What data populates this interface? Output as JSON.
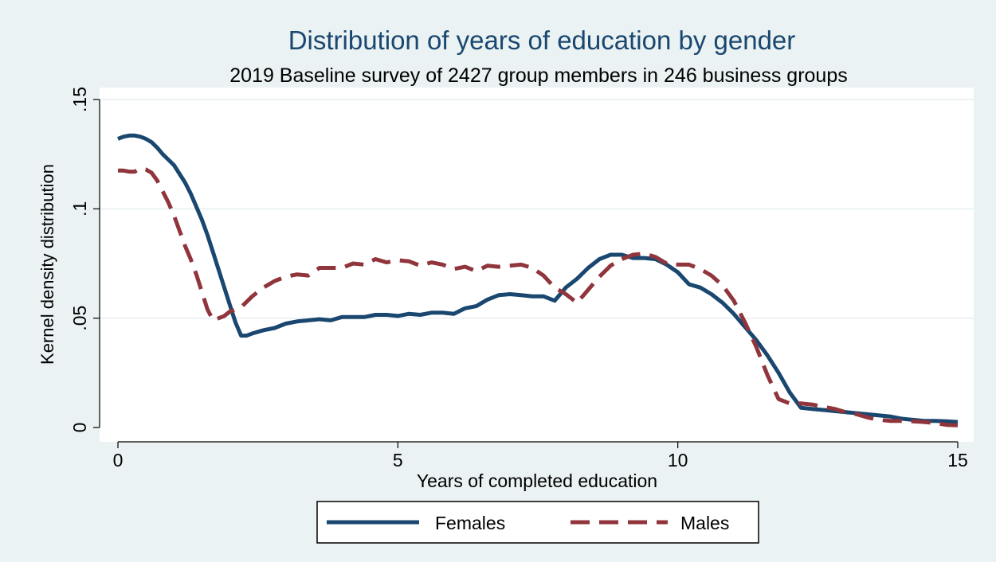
{
  "chart_data": {
    "type": "line",
    "title": "Distribution of years of education by gender",
    "subtitle": "2019 Baseline survey of 2427 group members in 246 business groups",
    "xlabel": "Years of completed education",
    "ylabel": "Kernel density distribution",
    "xlim": [
      0,
      15
    ],
    "ylim": [
      0,
      0.15
    ],
    "x_ticks": [
      0,
      5,
      10,
      15
    ],
    "x_tick_labels": [
      "0",
      "5",
      "10",
      "15"
    ],
    "y_ticks": [
      0,
      0.05,
      0.1,
      0.15
    ],
    "y_tick_labels": [
      "0",
      ".05",
      ".1",
      ".15"
    ],
    "grid": true,
    "legend_position": "bottom",
    "colors": {
      "plot_region_bg": "#ffffff",
      "outer_bg": "#eaf2f3",
      "gridline": "#e6eef0",
      "axis": "#000000",
      "title": "#1a476f"
    },
    "series": [
      {
        "name": "Females",
        "color": "#1a476f",
        "dash": "solid",
        "points": [
          [
            0,
            0.132
          ],
          [
            0.1,
            0.133
          ],
          [
            0.2,
            0.1335
          ],
          [
            0.3,
            0.1335
          ],
          [
            0.4,
            0.133
          ],
          [
            0.5,
            0.132
          ],
          [
            0.6,
            0.1305
          ],
          [
            0.7,
            0.128
          ],
          [
            0.8,
            0.125
          ],
          [
            0.9,
            0.1225
          ],
          [
            1.0,
            0.12
          ],
          [
            1.1,
            0.116
          ],
          [
            1.2,
            0.112
          ],
          [
            1.3,
            0.107
          ],
          [
            1.4,
            0.101
          ],
          [
            1.5,
            0.095
          ],
          [
            1.6,
            0.088
          ],
          [
            1.7,
            0.08
          ],
          [
            1.8,
            0.072
          ],
          [
            1.9,
            0.064
          ],
          [
            2.0,
            0.056
          ],
          [
            2.1,
            0.048
          ],
          [
            2.2,
            0.042
          ],
          [
            2.3,
            0.042
          ],
          [
            2.4,
            0.043
          ],
          [
            2.6,
            0.0445
          ],
          [
            2.8,
            0.0455
          ],
          [
            3.0,
            0.0475
          ],
          [
            3.2,
            0.0485
          ],
          [
            3.4,
            0.049
          ],
          [
            3.6,
            0.0495
          ],
          [
            3.8,
            0.049
          ],
          [
            4.0,
            0.0505
          ],
          [
            4.2,
            0.0505
          ],
          [
            4.4,
            0.0505
          ],
          [
            4.6,
            0.0515
          ],
          [
            4.8,
            0.0515
          ],
          [
            5.0,
            0.051
          ],
          [
            5.2,
            0.052
          ],
          [
            5.4,
            0.0515
          ],
          [
            5.6,
            0.0525
          ],
          [
            5.8,
            0.0525
          ],
          [
            6.0,
            0.052
          ],
          [
            6.2,
            0.0545
          ],
          [
            6.4,
            0.0555
          ],
          [
            6.6,
            0.0585
          ],
          [
            6.8,
            0.0605
          ],
          [
            7.0,
            0.061
          ],
          [
            7.2,
            0.0605
          ],
          [
            7.4,
            0.06
          ],
          [
            7.6,
            0.06
          ],
          [
            7.8,
            0.058
          ],
          [
            8.0,
            0.064
          ],
          [
            8.2,
            0.068
          ],
          [
            8.4,
            0.073
          ],
          [
            8.6,
            0.077
          ],
          [
            8.8,
            0.079
          ],
          [
            9.0,
            0.079
          ],
          [
            9.2,
            0.0775
          ],
          [
            9.4,
            0.0775
          ],
          [
            9.6,
            0.077
          ],
          [
            9.8,
            0.0745
          ],
          [
            10.0,
            0.071
          ],
          [
            10.2,
            0.0655
          ],
          [
            10.4,
            0.064
          ],
          [
            10.6,
            0.061
          ],
          [
            10.8,
            0.057
          ],
          [
            11.0,
            0.052
          ],
          [
            11.2,
            0.046
          ],
          [
            11.4,
            0.04
          ],
          [
            11.6,
            0.033
          ],
          [
            11.8,
            0.025
          ],
          [
            12.0,
            0.016
          ],
          [
            12.2,
            0.009
          ],
          [
            12.4,
            0.0085
          ],
          [
            12.6,
            0.008
          ],
          [
            12.8,
            0.0075
          ],
          [
            13.0,
            0.007
          ],
          [
            13.2,
            0.0065
          ],
          [
            13.4,
            0.006
          ],
          [
            13.6,
            0.0055
          ],
          [
            13.8,
            0.005
          ],
          [
            14.0,
            0.004
          ],
          [
            14.2,
            0.0035
          ],
          [
            14.4,
            0.003
          ],
          [
            14.6,
            0.003
          ],
          [
            14.8,
            0.0028
          ],
          [
            15.0,
            0.0025
          ]
        ]
      },
      {
        "name": "Males",
        "color": "#90353b",
        "dash": "dashed",
        "points": [
          [
            0,
            0.1175
          ],
          [
            0.1,
            0.1175
          ],
          [
            0.2,
            0.117
          ],
          [
            0.3,
            0.117
          ],
          [
            0.4,
            0.1185
          ],
          [
            0.5,
            0.118
          ],
          [
            0.6,
            0.1165
          ],
          [
            0.7,
            0.113
          ],
          [
            0.8,
            0.108
          ],
          [
            0.9,
            0.103
          ],
          [
            1.0,
            0.097
          ],
          [
            1.1,
            0.09
          ],
          [
            1.2,
            0.083
          ],
          [
            1.3,
            0.077
          ],
          [
            1.4,
            0.07
          ],
          [
            1.5,
            0.062
          ],
          [
            1.6,
            0.054
          ],
          [
            1.7,
            0.049
          ],
          [
            1.8,
            0.05
          ],
          [
            1.9,
            0.051
          ],
          [
            2.0,
            0.053
          ],
          [
            2.2,
            0.055
          ],
          [
            2.4,
            0.06
          ],
          [
            2.6,
            0.064
          ],
          [
            2.8,
            0.067
          ],
          [
            3.0,
            0.069
          ],
          [
            3.2,
            0.07
          ],
          [
            3.4,
            0.0695
          ],
          [
            3.6,
            0.073
          ],
          [
            3.8,
            0.073
          ],
          [
            4.0,
            0.073
          ],
          [
            4.2,
            0.075
          ],
          [
            4.4,
            0.0745
          ],
          [
            4.6,
            0.077
          ],
          [
            4.8,
            0.0755
          ],
          [
            5.0,
            0.0765
          ],
          [
            5.2,
            0.076
          ],
          [
            5.4,
            0.074
          ],
          [
            5.6,
            0.0755
          ],
          [
            5.8,
            0.0745
          ],
          [
            6.0,
            0.0725
          ],
          [
            6.2,
            0.0735
          ],
          [
            6.4,
            0.0715
          ],
          [
            6.6,
            0.074
          ],
          [
            6.8,
            0.0735
          ],
          [
            7.0,
            0.074
          ],
          [
            7.2,
            0.0745
          ],
          [
            7.4,
            0.073
          ],
          [
            7.6,
            0.0695
          ],
          [
            7.8,
            0.064
          ],
          [
            8.0,
            0.061
          ],
          [
            8.2,
            0.057
          ],
          [
            8.4,
            0.063
          ],
          [
            8.6,
            0.069
          ],
          [
            8.8,
            0.074
          ],
          [
            9.0,
            0.077
          ],
          [
            9.2,
            0.079
          ],
          [
            9.4,
            0.0795
          ],
          [
            9.6,
            0.078
          ],
          [
            9.8,
            0.075
          ],
          [
            10.0,
            0.0745
          ],
          [
            10.2,
            0.0745
          ],
          [
            10.4,
            0.0725
          ],
          [
            10.6,
            0.0695
          ],
          [
            10.8,
            0.065
          ],
          [
            11.0,
            0.058
          ],
          [
            11.2,
            0.048
          ],
          [
            11.4,
            0.037
          ],
          [
            11.6,
            0.024
          ],
          [
            11.8,
            0.013
          ],
          [
            12.0,
            0.011
          ],
          [
            12.2,
            0.011
          ],
          [
            12.4,
            0.0105
          ],
          [
            12.6,
            0.0095
          ],
          [
            12.8,
            0.0085
          ],
          [
            13.0,
            0.007
          ],
          [
            13.2,
            0.006
          ],
          [
            13.4,
            0.0045
          ],
          [
            13.6,
            0.0035
          ],
          [
            13.8,
            0.003
          ],
          [
            14.0,
            0.003
          ],
          [
            14.2,
            0.0028
          ],
          [
            14.4,
            0.0025
          ],
          [
            14.6,
            0.002
          ],
          [
            14.8,
            0.0012
          ],
          [
            15.0,
            0.001
          ]
        ]
      }
    ]
  }
}
